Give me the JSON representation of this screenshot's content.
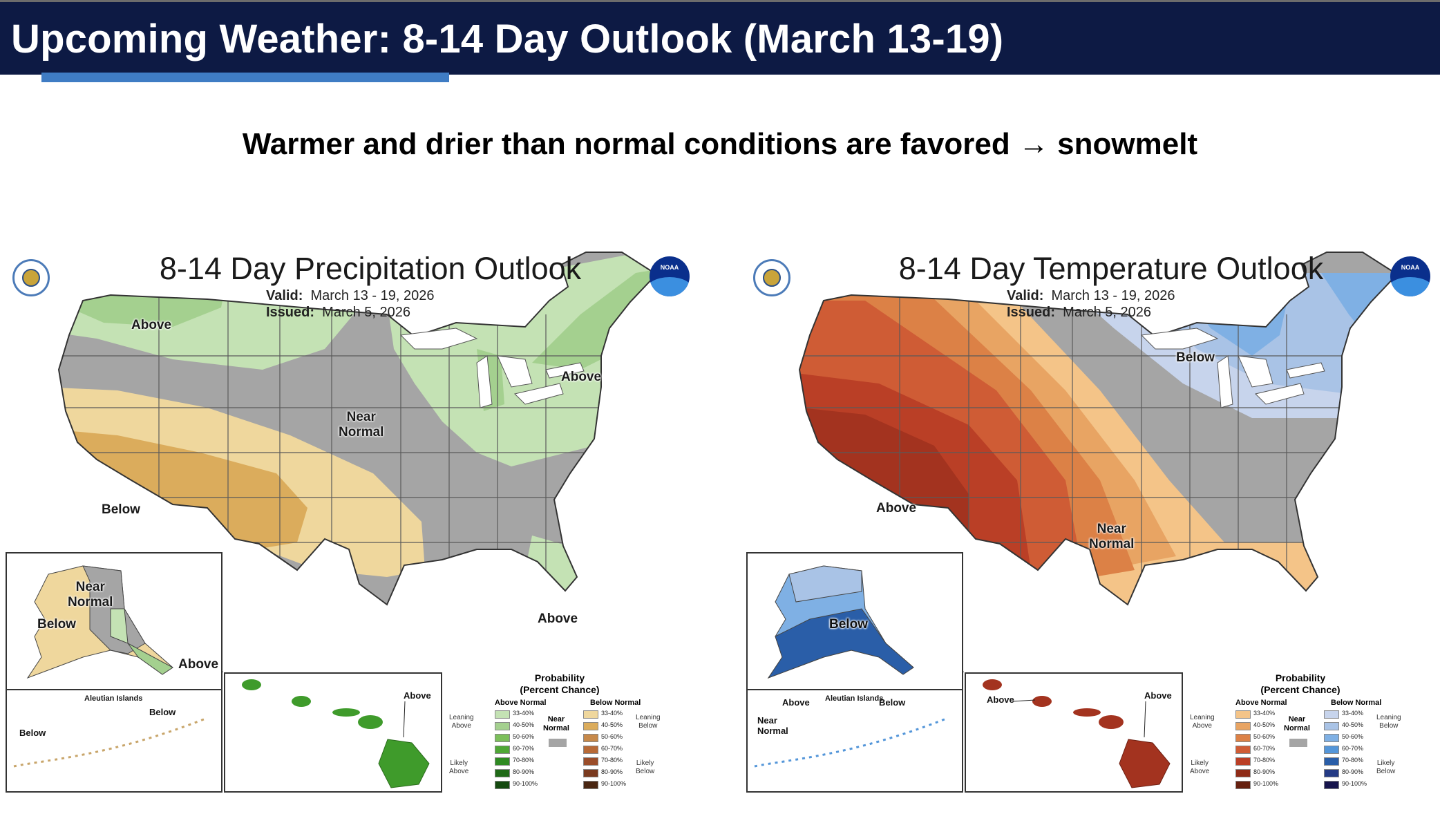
{
  "header": {
    "title": "Upcoming Weather: 8-14 Day Outlook (March 13-19)"
  },
  "subtitle": "Warmer and drier than normal conditions are favored → snowmelt",
  "precip": {
    "title": "8-14 Day Precipitation Outlook",
    "valid_label": "Valid:",
    "valid_value": "March 13 - 19, 2026",
    "issued_label": "Issued:",
    "issued_value": "March 5, 2026",
    "labels": {
      "above_nw": "Above",
      "above_ne": "Above",
      "near_normal": "Near\nNormal",
      "below_sw": "Below",
      "above_fl": "Above",
      "ak_near_normal": "Near\nNormal",
      "ak_below": "Below",
      "ak_above": "Above",
      "aleutian_title": "Aleutian Islands",
      "aleutian_below_e": "Below",
      "aleutian_below_w": "Below",
      "hi_above": "Above"
    },
    "colors": {
      "above": [
        "#c4e2b4",
        "#a4d08f",
        "#7cbf5b",
        "#3f9b2b"
      ],
      "below": [
        "#efd79d",
        "#dbac5c",
        "#b86a37"
      ],
      "near": "#a5a5a5"
    }
  },
  "temp": {
    "title": "8-14 Day Temperature Outlook",
    "valid_label": "Valid:",
    "valid_value": "March 13 - 19, 2026",
    "issued_label": "Issued:",
    "issued_value": "March 5, 2026",
    "labels": {
      "below_ne": "Below",
      "above_sw": "Above",
      "near_normal": "Near\nNormal",
      "ak_below": "Below",
      "aleutian_title": "Aleutian Islands",
      "aleutian_above": "Above",
      "aleutian_below": "Below",
      "aleutian_near": "Near\nNormal",
      "hi_above_w": "Above",
      "hi_above_e": "Above"
    },
    "colors": {
      "above": [
        "#f4c488",
        "#e8a463",
        "#dc8146",
        "#cf5c35",
        "#ba3f26",
        "#a3331f"
      ],
      "below": [
        "#c7d4ec",
        "#a9c3e6",
        "#7fb0e4",
        "#5496d9",
        "#2a5ea8"
      ],
      "near": "#a5a5a5"
    }
  },
  "legend": {
    "heading": "Probability\n(Percent Chance)",
    "above_title": "Above Normal",
    "below_title": "Below Normal",
    "near_label": "Near\nNormal",
    "leaning_above": "Leaning\nAbove",
    "leaning_below": "Leaning\nBelow",
    "likely_above": "Likely\nAbove",
    "likely_below": "Likely\nBelow",
    "bins": [
      "33-40%",
      "40-50%",
      "50-60%",
      "60-70%",
      "70-80%",
      "80-90%",
      "90-100%"
    ],
    "precip_above_colors": [
      "#c4e2b4",
      "#a4d08f",
      "#7cbf5b",
      "#4fa736",
      "#2f8a22",
      "#1f6a17",
      "#154a10"
    ],
    "precip_below_colors": [
      "#efd79d",
      "#dbac5c",
      "#c7894a",
      "#b86a37",
      "#9a4d2a",
      "#7a3a1f",
      "#4a2612"
    ],
    "temp_above_colors": [
      "#f4c488",
      "#e8a463",
      "#dc8146",
      "#cf5c35",
      "#ba3f26",
      "#8f2b17",
      "#66200f"
    ],
    "temp_below_colors": [
      "#c7d4ec",
      "#a9c3e6",
      "#7fb0e4",
      "#5496d9",
      "#2a5ea8",
      "#243b85",
      "#17154d"
    ]
  }
}
